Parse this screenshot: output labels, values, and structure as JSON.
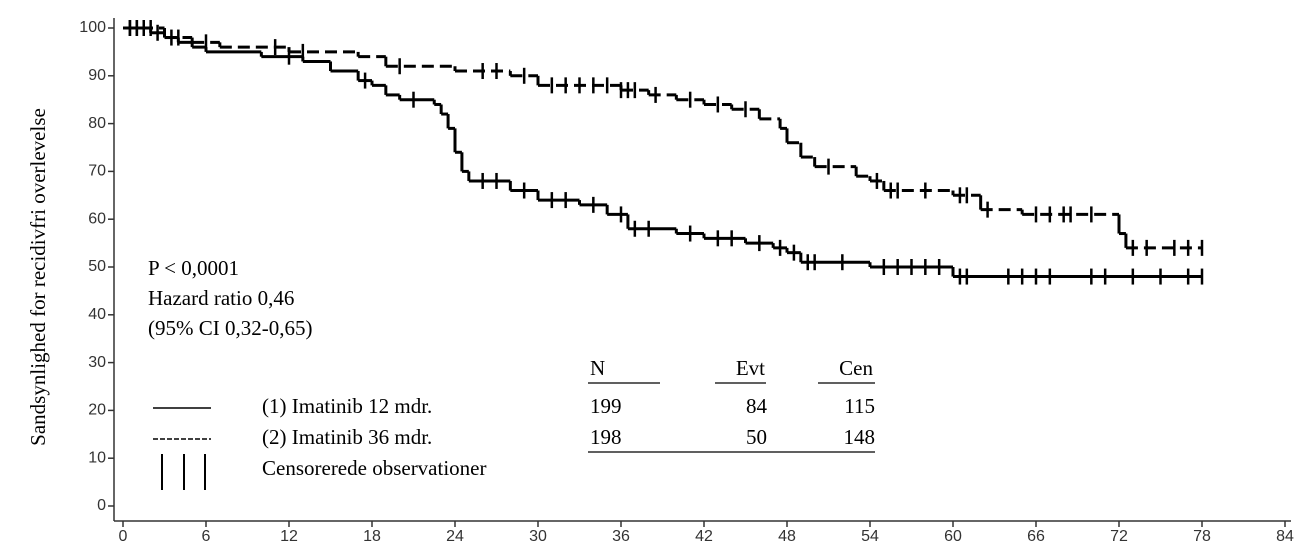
{
  "chart_data": {
    "type": "kaplan-meier",
    "y_label": "Sandsynlighed for recidivfri overlevelse",
    "xlim": [
      0,
      84
    ],
    "ylim": [
      0,
      100
    ],
    "xticks": [
      0,
      6,
      12,
      18,
      24,
      30,
      36,
      42,
      48,
      54,
      60,
      66,
      72,
      78,
      84
    ],
    "yticks": [
      0,
      10,
      20,
      30,
      40,
      50,
      60,
      70,
      80,
      90,
      100
    ],
    "annotations": [
      "P < 0,0001",
      "Hazard ratio 0,46",
      "(95% CI 0,32-0,65)"
    ],
    "censor_label": "Censorerede observationer",
    "series": [
      {
        "name": "(1) Imatinib 12 mdr.",
        "color": "#000000",
        "dash": false,
        "x": [
          0,
          2,
          3,
          4,
          5,
          6,
          10,
          13,
          15,
          17,
          18,
          19,
          20,
          22.5,
          23,
          23.5,
          24,
          24.5,
          25,
          28,
          30,
          33,
          35,
          36.5,
          40,
          42,
          45,
          47,
          48,
          49,
          54,
          60,
          78
        ],
        "values": [
          100,
          99,
          98,
          97,
          96,
          95,
          94,
          93,
          91,
          89,
          88,
          86,
          85,
          84,
          82,
          79,
          74,
          70,
          68,
          66,
          64,
          63,
          61,
          58,
          57,
          56,
          55,
          54,
          53,
          51,
          50,
          48,
          48
        ],
        "censored": [
          0.5,
          1,
          1.5,
          2.5,
          3.5,
          12,
          17.5,
          21,
          26,
          27,
          29,
          31,
          32,
          34,
          36,
          37,
          38,
          41,
          43,
          44,
          46,
          47.5,
          48.5,
          49.5,
          50,
          52,
          55,
          56,
          57,
          58,
          59,
          60.5,
          61,
          64,
          65,
          66,
          67,
          70,
          71,
          73,
          75,
          77,
          78
        ]
      },
      {
        "name": "(2) Imatinib 36 mdr.",
        "color": "#000000",
        "dash": true,
        "x": [
          0,
          3,
          5,
          7,
          12,
          17,
          19,
          24,
          28,
          30,
          36,
          38,
          40,
          42,
          44,
          46,
          47.5,
          48,
          49,
          50,
          53,
          54,
          55,
          60,
          62,
          65,
          72,
          72.5,
          78
        ],
        "values": [
          100,
          98,
          97,
          96,
          95,
          94,
          92,
          91,
          90,
          88,
          87,
          86,
          85,
          84,
          83,
          81,
          79,
          76,
          73,
          71,
          69,
          68,
          66,
          65,
          62,
          61,
          57,
          54,
          54
        ],
        "censored": [
          0.5,
          1,
          1.5,
          2,
          4,
          6,
          11,
          13,
          20,
          26,
          27,
          29,
          31,
          32,
          33,
          34,
          35,
          36,
          36.5,
          37,
          38.5,
          41,
          43,
          45,
          51,
          54.5,
          55.5,
          56,
          58,
          60.5,
          61,
          62.5,
          66,
          67,
          68,
          68.5,
          70,
          73,
          74,
          76,
          77,
          78
        ]
      }
    ],
    "risk_table": {
      "columns": [
        "N",
        "Evt",
        "Cen"
      ],
      "rows": [
        [
          199,
          84,
          115
        ],
        [
          198,
          50,
          148
        ]
      ]
    }
  }
}
